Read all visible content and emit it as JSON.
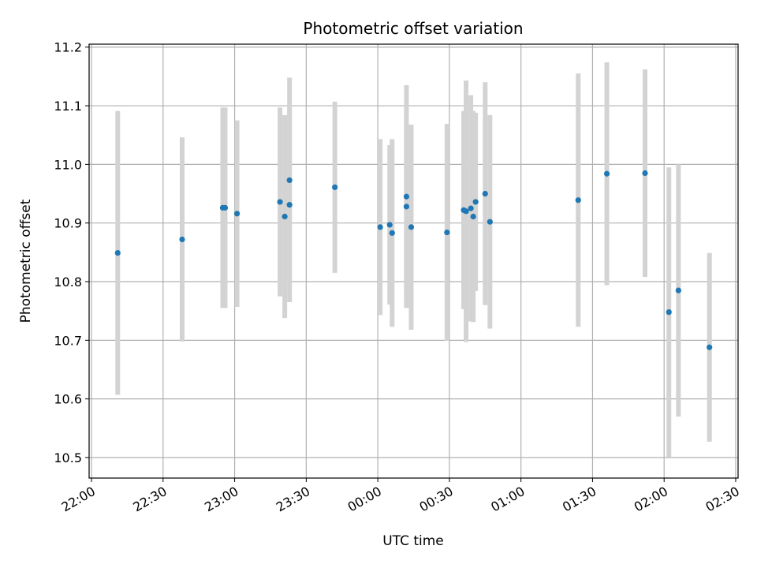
{
  "chart_data": {
    "type": "scatter",
    "title": "Photometric offset variation",
    "xlabel": "UTC time",
    "ylabel": "Photometric offset",
    "x_ticks": [
      "22:00",
      "22:30",
      "23:00",
      "23:30",
      "00:00",
      "00:30",
      "01:00",
      "01:30",
      "02:00",
      "02:30"
    ],
    "y_ticks": [
      "10.5",
      "10.6",
      "10.7",
      "10.8",
      "10.9",
      "11.0",
      "11.1",
      "11.2"
    ],
    "xlim": [
      "21:59",
      "02:31"
    ],
    "ylim": [
      10.465,
      11.205
    ],
    "grid": true,
    "series": [
      {
        "marker_color": "#1f77b4",
        "errorbar_color": "#d3d3d3",
        "points": [
          {
            "x": "22:11",
            "y": 10.849,
            "err": 0.242
          },
          {
            "x": "22:38",
            "y": 10.872,
            "err": 0.174
          },
          {
            "x": "22:55",
            "y": 10.926,
            "err": 0.171
          },
          {
            "x": "22:56",
            "y": 10.926,
            "err": 0.171
          },
          {
            "x": "23:01",
            "y": 10.916,
            "err": 0.159
          },
          {
            "x": "23:19",
            "y": 10.936,
            "err": 0.161
          },
          {
            "x": "23:21",
            "y": 10.911,
            "err": 0.173
          },
          {
            "x": "23:23",
            "y": 10.973,
            "err": 0.175
          },
          {
            "x": "23:23",
            "y": 10.931,
            "err": 0.166
          },
          {
            "x": "23:42",
            "y": 10.961,
            "err": 0.146
          },
          {
            "x": "00:01",
            "y": 10.893,
            "err": 0.15
          },
          {
            "x": "00:05",
            "y": 10.897,
            "err": 0.136
          },
          {
            "x": "00:06",
            "y": 10.883,
            "err": 0.16
          },
          {
            "x": "00:12",
            "y": 10.945,
            "err": 0.19
          },
          {
            "x": "00:12",
            "y": 10.928,
            "err": 0.165
          },
          {
            "x": "00:14",
            "y": 10.893,
            "err": 0.175
          },
          {
            "x": "00:29",
            "y": 10.884,
            "err": 0.185
          },
          {
            "x": "00:36",
            "y": 10.922,
            "err": 0.169
          },
          {
            "x": "00:37",
            "y": 10.92,
            "err": 0.223
          },
          {
            "x": "00:39",
            "y": 10.925,
            "err": 0.193
          },
          {
            "x": "00:40",
            "y": 10.911,
            "err": 0.18
          },
          {
            "x": "00:41",
            "y": 10.936,
            "err": 0.152
          },
          {
            "x": "00:45",
            "y": 10.95,
            "err": 0.19
          },
          {
            "x": "00:47",
            "y": 10.902,
            "err": 0.182
          },
          {
            "x": "01:24",
            "y": 10.939,
            "err": 0.216
          },
          {
            "x": "01:36",
            "y": 10.984,
            "err": 0.19
          },
          {
            "x": "01:52",
            "y": 10.985,
            "err": 0.177
          },
          {
            "x": "02:02",
            "y": 10.748,
            "err": 0.247
          },
          {
            "x": "02:06",
            "y": 10.785,
            "err": 0.215
          },
          {
            "x": "02:19",
            "y": 10.688,
            "err": 0.161
          }
        ]
      }
    ]
  }
}
